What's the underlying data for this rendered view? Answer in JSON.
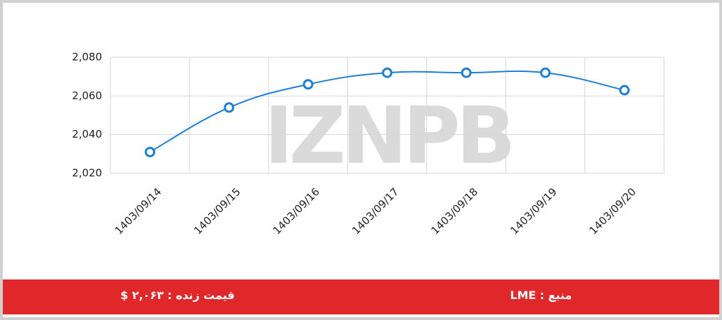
{
  "chart_data": {
    "type": "line",
    "categories": [
      "1403/09/14",
      "1403/09/15",
      "1403/09/16",
      "1403/09/17",
      "1403/09/18",
      "1403/09/19",
      "1403/09/20"
    ],
    "series": [
      {
        "name": "price",
        "color": "#1a7fd4",
        "values": [
          2031,
          2054,
          2066,
          2072,
          2072,
          2072,
          2063
        ]
      }
    ],
    "ylim": [
      2020,
      2080
    ],
    "yticks": [
      {
        "value": 2020,
        "label": "2,020"
      },
      {
        "value": 2040,
        "label": "2,040"
      },
      {
        "value": 2060,
        "label": "2,060"
      },
      {
        "value": 2080,
        "label": "2,080"
      }
    ],
    "grid": true
  },
  "watermark": "IZNPB",
  "footer": {
    "price": "قیمت زنده : ۲,۰۶۳ $",
    "source": "منبع : LME"
  }
}
